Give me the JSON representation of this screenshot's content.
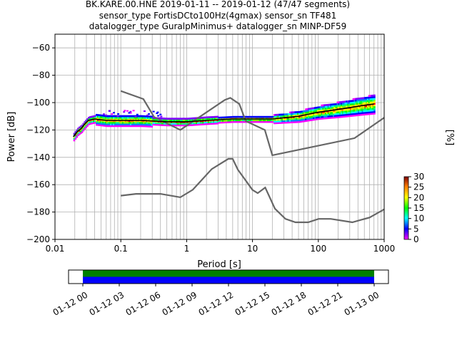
{
  "chart_data": [
    {
      "type": "heatmap",
      "title": [
        "BK.KARE.00.HNE   2019-01-11 -- 2019-01-12  (47/47 segments)",
        "sensor_type FortisDCto100Hz(4gmax) sensor_sn TF481",
        "datalogger_type GuralpMinimus+ datalogger_sn MINP-DF59"
      ],
      "xlabel": "Period [s]",
      "ylabel": "Power [dB]",
      "xscale": "log",
      "xlim": [
        0.01,
        1000
      ],
      "ylim": [
        -200,
        -50
      ],
      "xticks": [
        0.01,
        0.1,
        1,
        10,
        100,
        1000
      ],
      "xtick_labels": [
        "0.01",
        "0.1",
        "1",
        "10",
        "100",
        "1000"
      ],
      "yticks": [
        -200,
        -180,
        -160,
        -140,
        -120,
        -100,
        -80,
        -60
      ],
      "ytick_labels": [
        "−200",
        "−180",
        "−160",
        "−140",
        "−120",
        "−100",
        "−80",
        "−60"
      ],
      "grid": true,
      "mode_line": {
        "period": [
          0.019,
          0.022,
          0.025,
          0.028,
          0.032,
          0.04,
          0.06,
          0.1,
          0.2,
          0.5,
          1,
          2,
          5,
          10,
          20,
          50,
          100,
          200,
          500,
          700
        ],
        "power": [
          -125,
          -121,
          -119,
          -116,
          -113,
          -112,
          -113,
          -113,
          -113,
          -114,
          -114,
          -113,
          -112,
          -112,
          -112,
          -110,
          -107,
          -105,
          -102,
          -101
        ]
      },
      "nlnm": {
        "period": [
          0.1,
          0.17,
          0.4,
          0.8,
          1.24,
          2.4,
          4.3,
          5,
          6,
          10,
          12,
          15.6,
          21.9,
          31.6,
          45,
          70,
          101,
          154,
          328,
          600,
          1000
        ],
        "power": [
          -168,
          -166.7,
          -166.7,
          -169.2,
          -163.7,
          -148.6,
          -141.1,
          -141.1,
          -149,
          -163.8,
          -166.2,
          -162.1,
          -177.5,
          -185,
          -187.5,
          -187.5,
          -185,
          -185,
          -187.5,
          -184,
          -178
        ]
      },
      "nhnm": {
        "period": [
          0.1,
          0.22,
          0.32,
          0.8,
          3.8,
          4.6,
          6.3,
          7.9,
          15.4,
          20,
          354.8,
          1000
        ],
        "power": [
          -91.5,
          -97.4,
          -110.5,
          -120,
          -98,
          -96.5,
          -101,
          -113.5,
          -120,
          -138.5,
          -126,
          -111
        ]
      },
      "colorbar": {
        "label": "[%]",
        "ticks": [
          0,
          5,
          10,
          15,
          20,
          25,
          30
        ],
        "tick_labels": [
          "0",
          "5",
          "10",
          "15",
          "20",
          "25",
          "30"
        ],
        "range": [
          0,
          30
        ]
      }
    },
    {
      "type": "bar",
      "title": "",
      "xtick_labels": [
        "01-12 00",
        "01-12 03",
        "01-12 06",
        "01-12 09",
        "01-12 12",
        "01-12 15",
        "01-12 18",
        "01-12 21",
        "01-13 00"
      ],
      "rows": [
        {
          "name": "",
          "color": "#008000",
          "start": "01-12 00",
          "end": "01-13 00"
        },
        {
          "name": "",
          "color": "#0000ff",
          "start": "01-12 00",
          "end": "01-13 00"
        }
      ]
    }
  ]
}
